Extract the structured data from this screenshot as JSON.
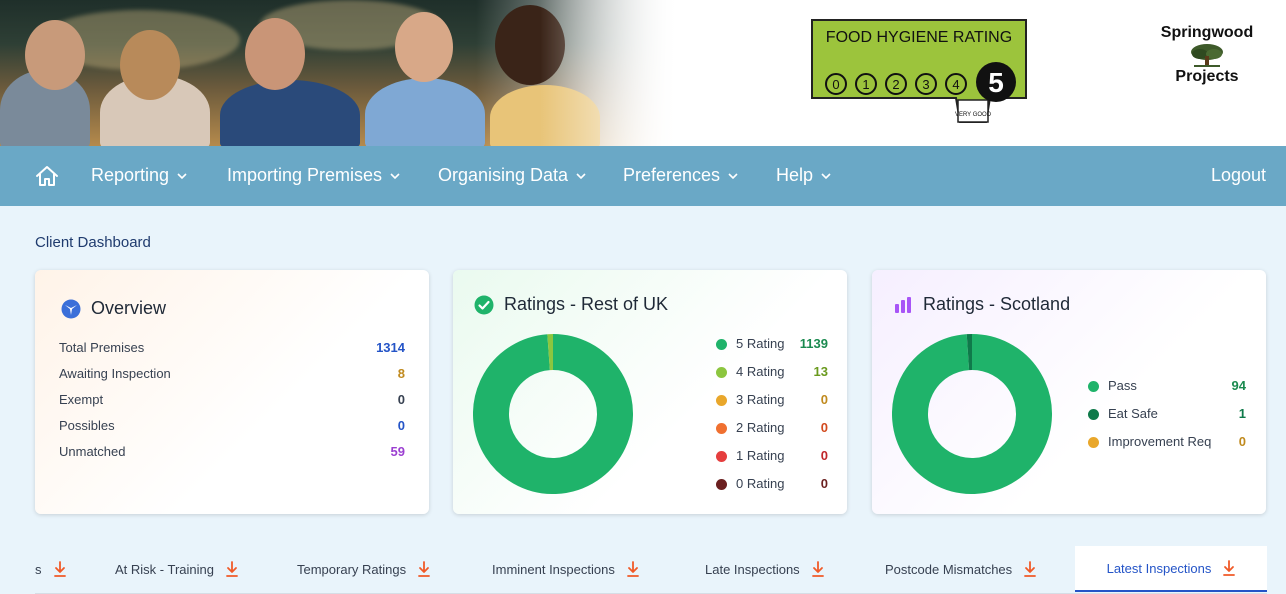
{
  "header": {
    "hero_alt": "",
    "hygiene": {
      "title": "FOOD HYGIENE RATING",
      "scores": [
        "0",
        "1",
        "2",
        "3",
        "4"
      ],
      "current": "5",
      "current_label": "VERY GOOD",
      "bg_color": "#9cc43c"
    },
    "brand": {
      "line1": "Springwood",
      "line2": "Projects"
    }
  },
  "nav": {
    "home_icon": "home-icon",
    "items": [
      "Reporting",
      "Importing Premises",
      "Organising Data",
      "Preferences",
      "Help"
    ],
    "logout": "Logout",
    "bg_color": "#6aa8c6"
  },
  "breadcrumb": "Client Dashboard",
  "overview": {
    "title": "Overview",
    "rows": [
      {
        "label": "Total Premises",
        "value": "1314",
        "color": "#2454c7"
      },
      {
        "label": "Awaiting Inspection",
        "value": "8",
        "color": "#c08a1e"
      },
      {
        "label": "Exempt",
        "value": "0",
        "color": "#374151"
      },
      {
        "label": "Possibles",
        "value": "0",
        "color": "#2454c7"
      },
      {
        "label": "Unmatched",
        "value": "59",
        "color": "#9b3fd1"
      }
    ]
  },
  "ratings_uk": {
    "title": "Ratings - Rest of UK",
    "legend": [
      {
        "label": "5 Rating",
        "value": "1139",
        "color": "#1fb36a",
        "num_color": "#1a8a4f"
      },
      {
        "label": "4 Rating",
        "value": "13",
        "color": "#8cc63f",
        "num_color": "#6a9a1e"
      },
      {
        "label": "3 Rating",
        "value": "0",
        "color": "#e9a72b",
        "num_color": "#c08a1e"
      },
      {
        "label": "2 Rating",
        "value": "0",
        "color": "#f07030",
        "num_color": "#d24a1e"
      },
      {
        "label": "1 Rating",
        "value": "0",
        "color": "#e53e3e",
        "num_color": "#c0262a"
      },
      {
        "label": "0 Rating",
        "value": "0",
        "color": "#6b1f1f",
        "num_color": "#6b1f1f"
      }
    ]
  },
  "ratings_scotland": {
    "title": "Ratings - Scotland",
    "legend": [
      {
        "label": "Pass",
        "value": "94",
        "color": "#1fb36a",
        "num_color": "#1a8a4f"
      },
      {
        "label": "Eat Safe",
        "value": "1",
        "color": "#0f7a4a",
        "num_color": "#0f7a4a"
      },
      {
        "label": "Improvement Req",
        "value": "0",
        "color": "#e9a72b",
        "num_color": "#c08a1e"
      }
    ]
  },
  "chart_data": [
    {
      "type": "pie",
      "categories": [
        "5 Rating",
        "4 Rating",
        "3 Rating",
        "2 Rating",
        "1 Rating",
        "0 Rating"
      ],
      "values": [
        1139,
        13,
        0,
        0,
        0,
        0
      ],
      "title": "Ratings - Rest of UK",
      "donut": true
    },
    {
      "type": "pie",
      "categories": [
        "Pass",
        "Eat Safe",
        "Improvement Req"
      ],
      "values": [
        94,
        1,
        0
      ],
      "title": "Ratings - Scotland",
      "donut": true
    }
  ],
  "tabs": {
    "items": [
      {
        "label": "s",
        "active": false
      },
      {
        "label": "At Risk - Training",
        "active": false
      },
      {
        "label": "Temporary Ratings",
        "active": false
      },
      {
        "label": "Imminent Inspections",
        "active": false
      },
      {
        "label": "Late Inspections",
        "active": false
      },
      {
        "label": "Postcode Mismatches",
        "active": false
      },
      {
        "label": "Latest Inspections",
        "active": true
      }
    ],
    "download_icon": "download-icon",
    "accent": "#f05a28"
  }
}
